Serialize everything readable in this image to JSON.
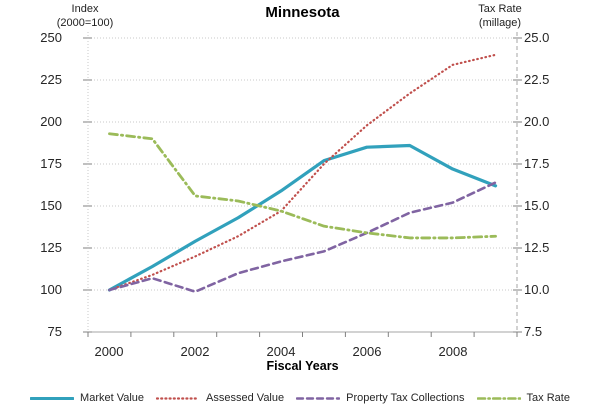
{
  "title": "Minnesota",
  "left_axis": {
    "header_line1": "Index",
    "header_line2": "(2000=100)",
    "ticks": [
      "250",
      "225",
      "200",
      "175",
      "150",
      "125",
      "100",
      "75"
    ]
  },
  "right_axis": {
    "header_line1": "Tax Rate",
    "header_line2": "(millage)",
    "ticks": [
      "25.0",
      "22.5",
      "20.0",
      "17.5",
      "15.0",
      "12.5",
      "10.0",
      "7.5"
    ]
  },
  "x_axis": {
    "title": "Fiscal Years",
    "tick_labels": [
      "2000",
      "2002",
      "2004",
      "2006",
      "2008"
    ]
  },
  "legend": {
    "items": [
      "Market Value",
      "Assessed Value",
      "Property Tax Collections",
      "Tax Rate"
    ]
  },
  "colors": {
    "market_value": "#31A1BC",
    "assessed_value": "#C0504D",
    "property_tax_collections": "#8064A2",
    "tax_rate": "#9BBB59",
    "gridline": "#C9C9C9",
    "axis_line": "#A6A6A6",
    "tick_mark": "#808080",
    "text": "#262626"
  },
  "chart_data": {
    "type": "line",
    "title": "Minnesota",
    "xlabel": "Fiscal Years",
    "left_axis_label": "Index (2000=100)",
    "right_axis_label": "Tax Rate (millage)",
    "x": [
      2000,
      2001,
      2002,
      2003,
      2004,
      2005,
      2006,
      2007,
      2008,
      2009
    ],
    "left_ylim": [
      75,
      250
    ],
    "right_ylim": [
      7.5,
      25.0
    ],
    "grid": true,
    "legend_position": "bottom",
    "series": [
      {
        "name": "Market Value",
        "axis": "left",
        "color": "#31A1BC",
        "style": "solid",
        "width": 3.2,
        "values": [
          100,
          114,
          129,
          143,
          159,
          177,
          185,
          186,
          172,
          162
        ]
      },
      {
        "name": "Assessed Value",
        "axis": "left",
        "color": "#C0504D",
        "style": "dotted",
        "width": 2.2,
        "values": [
          100,
          109,
          120,
          132,
          147,
          175,
          198,
          217,
          234,
          240
        ]
      },
      {
        "name": "Property Tax Collections",
        "axis": "left",
        "color": "#8064A2",
        "style": "dashed",
        "width": 2.6,
        "values": [
          100,
          107,
          99,
          110,
          117,
          123,
          134,
          146,
          152,
          164
        ]
      },
      {
        "name": "Tax Rate",
        "axis": "right",
        "color": "#9BBB59",
        "style": "dashdot",
        "width": 2.8,
        "values": [
          19.3,
          19.0,
          15.6,
          15.3,
          14.7,
          13.8,
          13.4,
          13.1,
          13.1,
          13.2
        ]
      }
    ]
  }
}
